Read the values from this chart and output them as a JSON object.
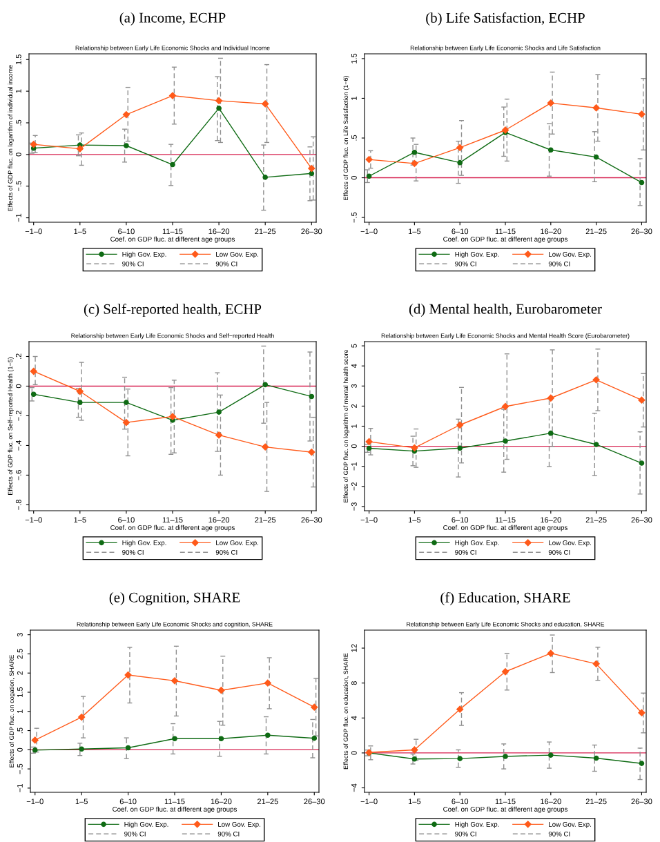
{
  "chart_data": [
    {
      "type": "line",
      "title": "(a) Income, ECHP",
      "subtitle": "Relationship between Early Life Economic Shocks and Individual Income",
      "xlabel": "Coef. on GDP fluc. at different age groups",
      "ylabel": "Effects of GDP fluc. on logarithm of individual income",
      "categories": [
        "−1–0",
        "1–5",
        "6–10",
        "11–15",
        "16–20",
        "21–25",
        "26–30"
      ],
      "series": [
        {
          "name": "High Gov. Exp.",
          "color": "#0f6b14",
          "marker": "circle",
          "values": [
            0.1,
            0.15,
            0.14,
            -0.16,
            0.73,
            -0.36,
            -0.3
          ],
          "errors": [
            [
              0.02,
              0.18
            ],
            [
              -0.02,
              0.31
            ],
            [
              -0.12,
              0.4
            ],
            [
              -0.49,
              0.16
            ],
            [
              0.22,
              1.23
            ],
            [
              -0.88,
              0.15
            ],
            [
              -0.73,
              0.12
            ]
          ]
        },
        {
          "name": "Low Gov. Exp.",
          "color": "#ff5a1a",
          "marker": "diamond",
          "values": [
            0.16,
            0.09,
            0.63,
            0.93,
            0.85,
            0.8,
            -0.22
          ],
          "errors": [
            [
              0.03,
              0.3
            ],
            [
              -0.17,
              0.34
            ],
            [
              0.21,
              1.06
            ],
            [
              0.48,
              1.38
            ],
            [
              0.19,
              1.52
            ],
            [
              0.19,
              1.42
            ],
            [
              -0.72,
              0.28
            ]
          ]
        }
      ],
      "annotations": [
        "90% CI",
        "90% CI"
      ],
      "ylim": [
        -1.07,
        1.59
      ],
      "yticks": [
        {
          "value": -1,
          "label": "−1"
        },
        {
          "value": -0.5,
          "label": "−.5"
        },
        0,
        {
          "value": 0.5,
          "label": ".5"
        },
        1,
        {
          "value": 1.5,
          "label": "1.5"
        }
      ],
      "ref_lines": [
        {
          "axis": "y",
          "value": 0,
          "color": "#d6204f"
        }
      ],
      "legend": "bottom",
      "grid": false
    },
    {
      "type": "line",
      "title": "(b) Life Satisfaction, ECHP",
      "subtitle": "Relationship between Early Life Economic Shocks and Life Satisfaction",
      "xlabel": "Coef. on GDP fluc. at different age groups",
      "ylabel": "Effects of GDP fluc. on Life Satisfaction (1−6)",
      "categories": [
        "−1–0",
        "1–5",
        "6–10",
        "11–15",
        "16–20",
        "21–25",
        "26–30"
      ],
      "series": [
        {
          "name": "High Gov. Exp.",
          "color": "#0f6b14",
          "marker": "circle",
          "values": [
            0.02,
            0.32,
            0.19,
            0.57,
            0.35,
            0.26,
            -0.06
          ],
          "errors": [
            [
              -0.06,
              0.1
            ],
            [
              0.16,
              0.5
            ],
            [
              -0.07,
              0.46
            ],
            [
              0.27,
              0.89
            ],
            [
              0.02,
              0.68
            ],
            [
              -0.05,
              0.58
            ],
            [
              -0.35,
              0.24
            ]
          ]
        },
        {
          "name": "Low Gov. Exp.",
          "color": "#ff5a1a",
          "marker": "diamond",
          "values": [
            0.23,
            0.18,
            0.38,
            0.6,
            0.94,
            0.88,
            0.8
          ],
          "errors": [
            [
              0.12,
              0.34
            ],
            [
              -0.04,
              0.42
            ],
            [
              0.03,
              0.72
            ],
            [
              0.21,
              0.99
            ],
            [
              0.55,
              1.33
            ],
            [
              0.46,
              1.3
            ],
            [
              0.35,
              1.25
            ]
          ]
        }
      ],
      "annotations": [
        "90% CI",
        "90% CI"
      ],
      "ylim": [
        -0.56,
        1.56
      ],
      "yticks": [
        {
          "value": -0.5,
          "label": "−.5"
        },
        0,
        {
          "value": 0.5,
          "label": ".5"
        },
        1,
        {
          "value": 1.5,
          "label": "1.5"
        }
      ],
      "ref_lines": [
        {
          "axis": "y",
          "value": 0,
          "color": "#d6204f"
        }
      ],
      "legend": "bottom",
      "grid": false
    },
    {
      "type": "line",
      "title": "(c) Self-reported health, ECHP",
      "subtitle": "Relationship between Early Life Economic Shocks and Self−reported Health",
      "xlabel": "Coef. on GDP fluc. at different age groups",
      "ylabel": "Effects of GDP fluc. on Self−reported Health (1−5)",
      "categories": [
        "−1–0",
        "1–5",
        "6–10",
        "11–15",
        "16–20",
        "21–25",
        "26–30"
      ],
      "series": [
        {
          "name": "High Gov. Exp.",
          "color": "#0f6b14",
          "marker": "circle",
          "values": [
            -0.055,
            -0.11,
            -0.11,
            -0.23,
            -0.175,
            0.01,
            -0.07
          ],
          "errors": [
            [
              -0.1,
              -0.01
            ],
            [
              -0.21,
              -0.015
            ],
            [
              -0.29,
              0.06
            ],
            [
              -0.46,
              -0.01
            ],
            [
              -0.44,
              0.09
            ],
            [
              -0.25,
              0.27
            ],
            [
              -0.37,
              0.23
            ]
          ]
        },
        {
          "name": "Low Gov. Exp.",
          "color": "#ff5a1a",
          "marker": "diamond",
          "values": [
            0.1,
            -0.035,
            -0.245,
            -0.205,
            -0.33,
            -0.41,
            -0.445
          ],
          "errors": [
            [
              0.01,
              0.2
            ],
            [
              -0.23,
              0.16
            ],
            [
              -0.47,
              -0.02
            ],
            [
              -0.45,
              0.04
            ],
            [
              -0.6,
              -0.06
            ],
            [
              -0.71,
              -0.11
            ],
            [
              -0.68,
              -0.21
            ]
          ]
        }
      ],
      "annotations": [
        "90% CI",
        "90% CI"
      ],
      "ylim": [
        -0.84,
        0.3
      ],
      "yticks": [
        {
          "value": -0.8,
          "label": "−.8"
        },
        {
          "value": -0.6,
          "label": "−.6"
        },
        {
          "value": -0.4,
          "label": "−.4"
        },
        {
          "value": -0.2,
          "label": "−.2"
        },
        0,
        {
          "value": 0.2,
          "label": ".2"
        }
      ],
      "ref_lines": [
        {
          "axis": "y",
          "value": 0,
          "color": "#d6204f"
        }
      ],
      "legend": "bottom",
      "grid": false
    },
    {
      "type": "line",
      "title": "(d) Mental health, Eurobarometer",
      "subtitle": "Relationship between Early Life Economic Shocks and Mental Health Score (Eurobarometer)",
      "xlabel": "Coef. on GDP fluc. at different age groups",
      "ylabel": "Effects of GDP fluc. on logarithm of mental health score",
      "categories": [
        "−1–0",
        "1–5",
        "6–10",
        "11–15",
        "16–20",
        "21–25",
        "26–30"
      ],
      "series": [
        {
          "name": "High Gov. Exp.",
          "color": "#0f6b14",
          "marker": "circle",
          "values": [
            -0.1,
            -0.24,
            -0.09,
            0.26,
            0.65,
            0.09,
            -0.84
          ],
          "errors": [
            [
              -0.3,
              0.1
            ],
            [
              -0.97,
              0.5
            ],
            [
              -1.53,
              1.35
            ],
            [
              -1.29,
              1.84
            ],
            [
              -1.01,
              2.37
            ],
            [
              -1.46,
              1.64
            ],
            [
              -2.38,
              0.72
            ]
          ]
        },
        {
          "name": "Low Gov. Exp.",
          "color": "#ff5a1a",
          "marker": "diamond",
          "values": [
            0.23,
            -0.08,
            1.06,
            1.98,
            2.4,
            3.31,
            2.3
          ],
          "errors": [
            [
              -0.43,
              0.89
            ],
            [
              -1.05,
              0.86
            ],
            [
              -0.83,
              2.93
            ],
            [
              -0.65,
              4.6
            ],
            [
              -0.01,
              4.8
            ],
            [
              1.77,
              4.84
            ],
            [
              0.96,
              3.62
            ]
          ]
        }
      ],
      "annotations": [
        "90% CI",
        "90% CI"
      ],
      "ylim": [
        -3.21,
        5.21
      ],
      "yticks": [
        {
          "value": -3,
          "label": "−3"
        },
        {
          "value": -2,
          "label": "−2"
        },
        {
          "value": -1,
          "label": "−1"
        },
        0,
        1,
        2,
        3,
        4,
        5
      ],
      "ref_lines": [
        {
          "axis": "y",
          "value": 0,
          "color": "#d6204f"
        }
      ],
      "legend": "bottom",
      "grid": false
    },
    {
      "type": "line",
      "title": "(e) Cognition, SHARE",
      "subtitle": "Relationship between Early Life Economic Shocks and cognition, SHARE",
      "xlabel": "Coef. on GDP fluc. at different age groups",
      "ylabel": "Effects of GDP fluc. on cogation, SHARE",
      "categories": [
        "−1–0",
        "1–5",
        "6–10",
        "11–15",
        "16–20",
        "21–25",
        "26–30"
      ],
      "series": [
        {
          "name": "High Gov. Exp.",
          "color": "#0f6b14",
          "marker": "circle",
          "values": [
            -0.01,
            0.02,
            0.05,
            0.29,
            0.29,
            0.38,
            0.3
          ],
          "errors": [
            [
              -0.09,
              0.07
            ],
            [
              -0.15,
              0.17
            ],
            [
              -0.23,
              0.31
            ],
            [
              -0.11,
              0.68
            ],
            [
              -0.17,
              0.74
            ],
            [
              -0.11,
              0.86
            ],
            [
              -0.21,
              0.79
            ]
          ]
        },
        {
          "name": "Low Gov. Exp.",
          "color": "#ff5a1a",
          "marker": "diamond",
          "values": [
            0.25,
            0.85,
            1.95,
            1.8,
            1.55,
            1.74,
            1.11
          ],
          "errors": [
            [
              -0.06,
              0.56
            ],
            [
              0.31,
              1.39
            ],
            [
              1.22,
              2.67
            ],
            [
              0.88,
              2.7
            ],
            [
              0.64,
              2.44
            ],
            [
              1.07,
              2.4
            ],
            [
              0.36,
              1.86
            ]
          ]
        }
      ],
      "annotations": [
        "90% CI",
        "90% CI"
      ],
      "ylim": [
        -1.11,
        3.12
      ],
      "yticks": [
        {
          "value": -1,
          "label": "−1"
        },
        {
          "value": -0.5,
          "label": "−.5"
        },
        0,
        {
          "value": 0.5,
          "label": ".5"
        },
        1,
        {
          "value": 1.5,
          "label": "1.5"
        },
        2,
        {
          "value": 2.5,
          "label": "2.5"
        },
        3
      ],
      "ref_lines": [
        {
          "axis": "y",
          "value": 0,
          "color": "#d6204f"
        }
      ],
      "legend": "bottom",
      "grid": false
    },
    {
      "type": "line",
      "title": "(f) Education, SHARE",
      "subtitle": "Relationship between Early Life Economic Shocks and education, SHARE",
      "xlabel": "Coef. on GDP fluc. at different age groups",
      "ylabel": "Effects of GDP fluc. on education, SHARE",
      "categories": [
        "−1–0",
        "1–5",
        "6–10",
        "11–15",
        "16–20",
        "21–25",
        "26–30"
      ],
      "series": [
        {
          "name": "High Gov. Exp.",
          "color": "#0f6b14",
          "marker": "circle",
          "values": [
            0,
            -0.7,
            -0.65,
            -0.4,
            -0.25,
            -0.6,
            -1.2
          ],
          "errors": [
            [
              -0.33,
              0.33
            ],
            [
              -1.27,
              -0.13
            ],
            [
              -1.65,
              0.35
            ],
            [
              -1.83,
              1.03
            ],
            [
              -1.75,
              1.25
            ],
            [
              -2.1,
              0.9
            ],
            [
              -3.05,
              0.55
            ]
          ]
        },
        {
          "name": "Low Gov. Exp.",
          "color": "#ff5a1a",
          "marker": "diamond",
          "values": [
            0.05,
            0.35,
            5.0,
            9.3,
            11.4,
            10.2,
            4.6
          ],
          "errors": [
            [
              -0.78,
              0.8
            ],
            [
              -0.85,
              1.56
            ],
            [
              3.15,
              6.9
            ],
            [
              7.2,
              11.4
            ],
            [
              9.2,
              13.5
            ],
            [
              8.3,
              12.1
            ],
            [
              2.3,
              6.85
            ]
          ]
        }
      ],
      "annotations": [
        "90% CI",
        "90% CI"
      ],
      "ylim": [
        -4.51,
        14.06
      ],
      "yticks": [
        {
          "value": -4,
          "label": "−4"
        },
        0,
        4,
        8,
        12
      ],
      "ref_lines": [
        {
          "axis": "y",
          "value": 0,
          "color": "#d6204f"
        }
      ],
      "legend": "bottom",
      "grid": false
    }
  ]
}
